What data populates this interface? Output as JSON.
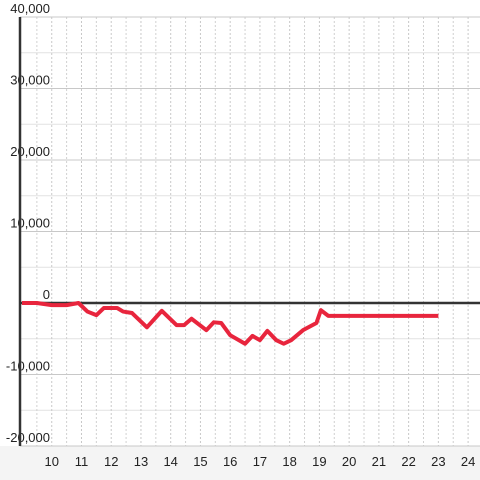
{
  "chart_data": {
    "type": "line",
    "x": [
      9.0,
      9.5,
      10.0,
      10.5,
      10.9,
      11.2,
      11.5,
      11.75,
      12.2,
      12.4,
      12.7,
      13.2,
      13.7,
      14.2,
      14.45,
      14.7,
      15.2,
      15.45,
      15.7,
      16.0,
      16.5,
      16.75,
      17.0,
      17.25,
      17.55,
      17.8,
      18.05,
      18.45,
      18.9,
      19.05,
      19.3,
      23.0
    ],
    "series": [
      {
        "color": "#e8253d",
        "values": [
          0,
          0,
          -300,
          -300,
          0,
          -1200,
          -1700,
          -700,
          -700,
          -1200,
          -1400,
          -3400,
          -1100,
          -3100,
          -3100,
          -2200,
          -3800,
          -2700,
          -2800,
          -4500,
          -5700,
          -4600,
          -5200,
          -3900,
          -5200,
          -5700,
          -5200,
          -3800,
          -2800,
          -1000,
          -1800,
          -1800
        ]
      }
    ],
    "xlim": [
      9,
      24.4
    ],
    "xticks": [
      10,
      11,
      12,
      13,
      14,
      15,
      16,
      17,
      18,
      19,
      20,
      21,
      22,
      23,
      24
    ],
    "ylim": [
      -20000,
      40000
    ],
    "yticks": [
      {
        "value": -20000,
        "label": "-20,000"
      },
      {
        "value": -10000,
        "label": "-10,000"
      },
      0,
      {
        "value": 10000,
        "label": "10,000"
      },
      {
        "value": 20000,
        "label": "20,000"
      },
      {
        "value": 30000,
        "label": "30,000"
      },
      {
        "value": 40000,
        "label": "40,000"
      }
    ],
    "grid": true
  }
}
